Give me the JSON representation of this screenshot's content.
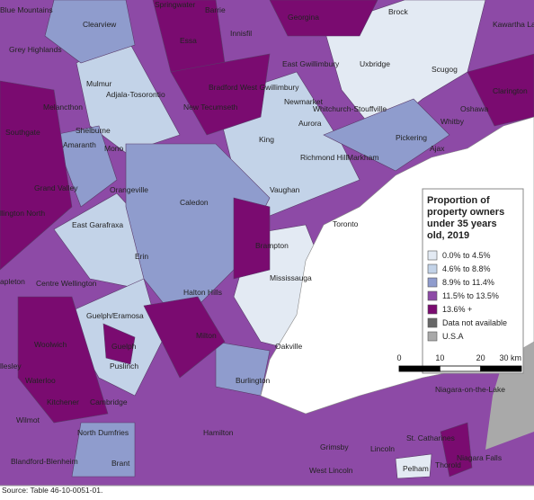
{
  "map": {
    "place_labels": [
      "Blue Mountains",
      "Springwater",
      "Barrie",
      "Clearview",
      "Essa",
      "Innisfil",
      "Georgina",
      "Brock",
      "Kawartha La",
      "Grey Highlands",
      "Mulmur",
      "Adjala-Tosorontio",
      "Bradford West Gwillimbury",
      "East Gwillimbury",
      "Uxbridge",
      "Scugog",
      "Melancthon",
      "New Tecumseth",
      "Newmarket",
      "Whitchurch-Stouffville",
      "Aurora",
      "Clarington",
      "Oshawa",
      "Whitby",
      "Southgate",
      "Shelburne",
      "Mono",
      "King",
      "Richmond Hill",
      "Markham",
      "Pickering",
      "Ajax",
      "Amaranth",
      "Orangeville",
      "Grand Valley",
      "East Garafraxa",
      "Caledon",
      "Vaughan",
      "llington North",
      "Erin",
      "Brampton",
      "Toronto",
      "apleton",
      "Centre Wellington",
      "Halton Hills",
      "Mississauga",
      "Guelph/Eramosa",
      "Guelph",
      "Milton",
      "Oakville",
      "Woolwich",
      "llesley",
      "Puslinch",
      "Waterloo",
      "Kitchener",
      "Cambridge",
      "Burlington",
      "Wilmot",
      "North Dumfries",
      "Hamilton",
      "Niagara-on-the-Lake",
      "Blandford-Blenheim",
      "Brant",
      "Grimsby",
      "Lincoln",
      "St. Catharines",
      "Niagara Falls",
      "West Lincoln",
      "Pelham",
      "Thorold"
    ],
    "legend": {
      "title": "Proportion of property owners under 35 years old, 2019",
      "items": [
        {
          "label": "0.0% to 4.5%",
          "color": "#e3eaf3"
        },
        {
          "label": "4.6% to 8.8%",
          "color": "#c3d3e8"
        },
        {
          "label": "8.9% to 11.4%",
          "color": "#8f9ccd"
        },
        {
          "label": "11.5% to 13.5%",
          "color": "#8d4aa6"
        },
        {
          "label": "13.6% +",
          "color": "#7a0b70"
        },
        {
          "label": "Data not available",
          "color": "#676767"
        },
        {
          "label": "U.S.A",
          "color": "#a9a9a9"
        }
      ],
      "scale_labels": [
        "0",
        "10",
        "20",
        "30 km"
      ]
    },
    "source": "Source: Table 46-10-0051-01."
  }
}
